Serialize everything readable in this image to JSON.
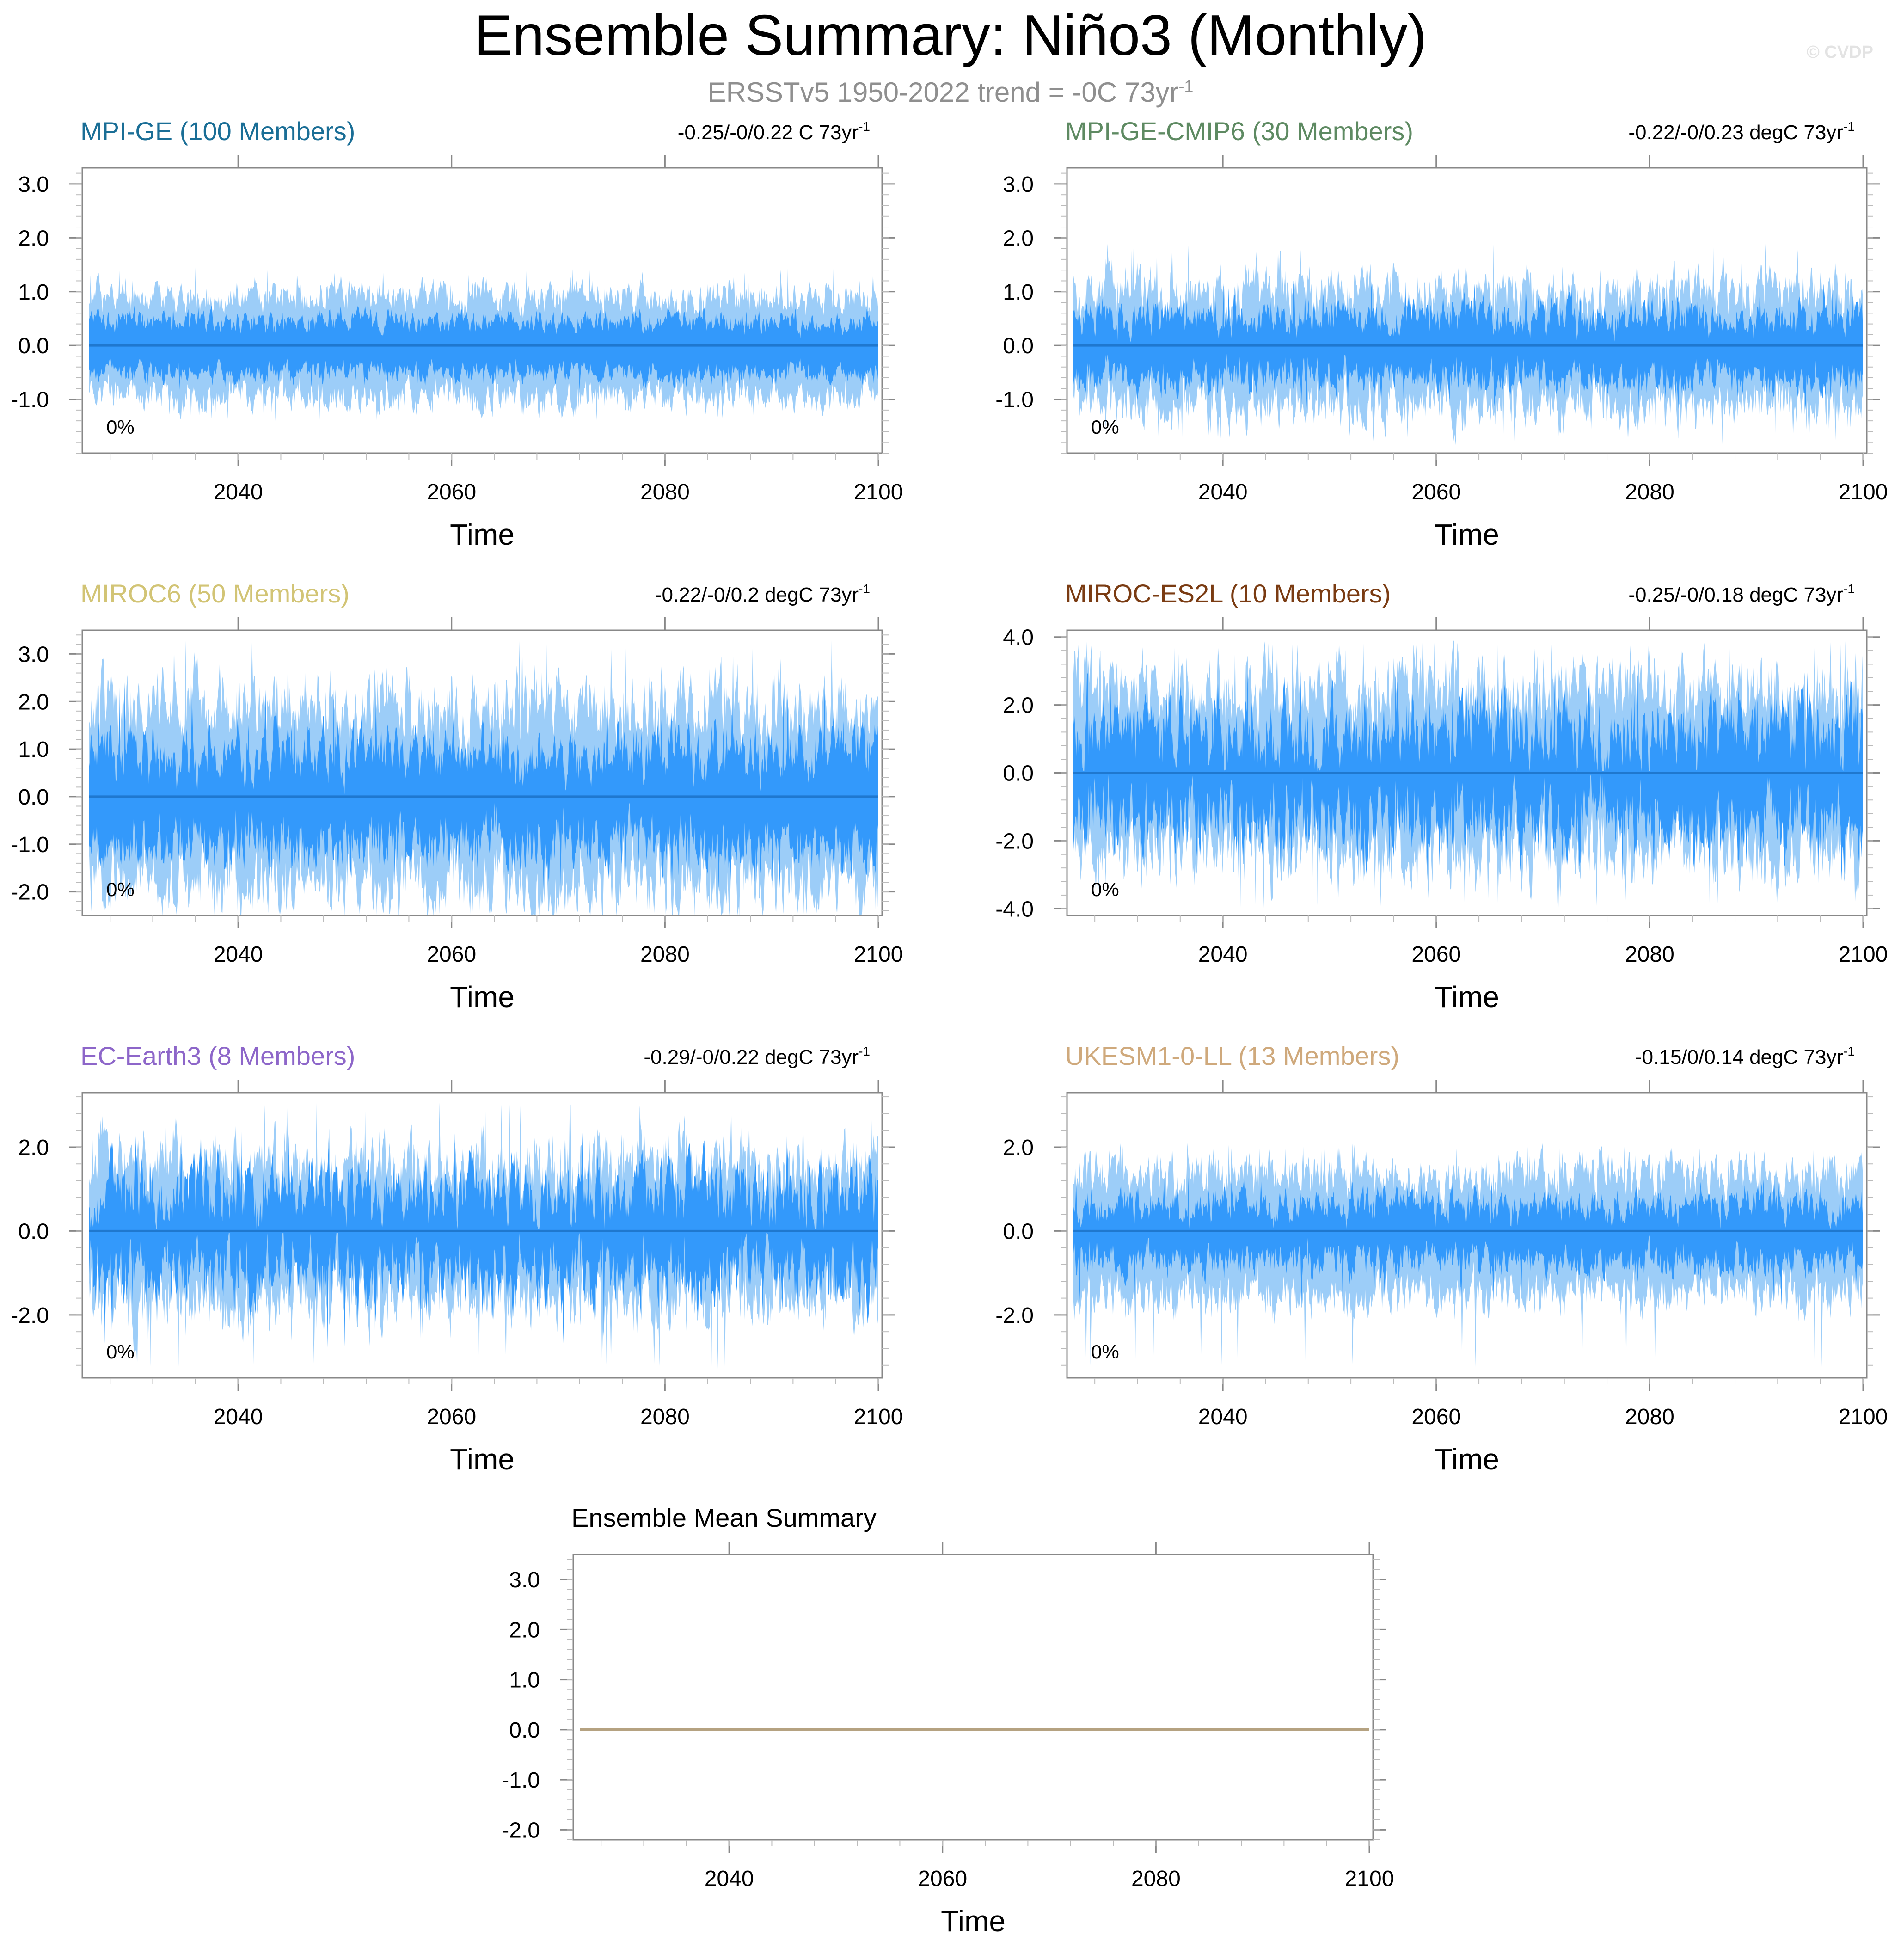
{
  "figure": {
    "title": "Ensemble Summary: Niño3 (Monthly)",
    "subtitle_main": "ERSSTv5 1950-2022 trend = -0C 73yr",
    "subtitle_sup": "-1",
    "copyright": "© CVDP"
  },
  "colors": {
    "outer_band": "#9ccdf8",
    "inner_band": "#3399fb",
    "mean_line": "#1f78cf",
    "ensemble_mean_line": "#b5a281",
    "axis": "#888888"
  },
  "chart_data": [
    {
      "type": "area",
      "title": "MPI-GE (100 Members)",
      "title_color": "#1a6e96",
      "trend_text": "-0.25/-0/0.22 C 73yr",
      "trend_sup": "-1",
      "percent_label": "0%",
      "xlabel": "Time",
      "ylabel": "",
      "x_range": [
        2026,
        2100
      ],
      "x_ticks": [
        2040,
        2060,
        2080,
        2100
      ],
      "ylim": [
        -2.0,
        3.3
      ],
      "y_ticks": [
        -1.0,
        0.0,
        1.0,
        2.0,
        3.0
      ],
      "y_tick_labels": [
        "-1.0",
        "0.0",
        "1.0",
        "2.0",
        "3.0"
      ],
      "series": [
        {
          "name": "",
          "band": "outer",
          "upper_mean": 0.9,
          "lower_mean": -0.95,
          "variability": 0.22,
          "peak_max": 1.45,
          "trough_min": -1.45
        },
        {
          "name": "",
          "band": "inner",
          "upper_mean": 0.45,
          "lower_mean": -0.5,
          "variability": 0.15,
          "peak_max": 0.75,
          "trough_min": -0.85
        },
        {
          "name": "",
          "band": "mean",
          "value": 0.0
        }
      ]
    },
    {
      "type": "area",
      "title": "MPI-GE-CMIP6 (30 Members)",
      "title_color": "#5e8a62",
      "trend_text": "-0.22/-0/0.23 degC 73yr",
      "trend_sup": "-1",
      "percent_label": "0%",
      "xlabel": "Time",
      "ylabel": "",
      "x_range": [
        2026,
        2100
      ],
      "x_ticks": [
        2040,
        2060,
        2080,
        2100
      ],
      "ylim": [
        -2.0,
        3.3
      ],
      "y_ticks": [
        -1.0,
        0.0,
        1.0,
        2.0,
        3.0
      ],
      "y_tick_labels": [
        "-1.0",
        "0.0",
        "1.0",
        "2.0",
        "3.0"
      ],
      "series": [
        {
          "name": "",
          "band": "outer",
          "upper_mean": 1.0,
          "lower_mean": -1.1,
          "variability": 0.35,
          "peak_max": 1.9,
          "trough_min": -1.85
        },
        {
          "name": "",
          "band": "inner",
          "upper_mean": 0.55,
          "lower_mean": -0.6,
          "variability": 0.25,
          "peak_max": 1.2,
          "trough_min": -1.2
        },
        {
          "name": "",
          "band": "mean",
          "value": 0.0
        }
      ]
    },
    {
      "type": "area",
      "title": "MIROC6 (50 Members)",
      "title_color": "#d2c475",
      "trend_text": "-0.22/-0/0.2 degC 73yr",
      "trend_sup": "-1",
      "percent_label": "0%",
      "xlabel": "Time",
      "ylabel": "",
      "x_range": [
        2026,
        2100
      ],
      "x_ticks": [
        2040,
        2060,
        2080,
        2100
      ],
      "ylim": [
        -2.5,
        3.5
      ],
      "y_ticks": [
        -2.0,
        -1.0,
        0.0,
        1.0,
        2.0,
        3.0
      ],
      "y_tick_labels": [
        "-2.0",
        "-1.0",
        "0.0",
        "1.0",
        "2.0",
        "3.0"
      ],
      "series": [
        {
          "name": "",
          "band": "outer",
          "upper_mean": 1.9,
          "lower_mean": -1.8,
          "variability": 0.55,
          "peak_max": 3.4,
          "trough_min": -2.5
        },
        {
          "name": "",
          "band": "inner",
          "upper_mean": 0.9,
          "lower_mean": -1.0,
          "variability": 0.45,
          "peak_max": 2.3,
          "trough_min": -2.0
        },
        {
          "name": "",
          "band": "mean",
          "value": 0.0
        }
      ]
    },
    {
      "type": "area",
      "title": "MIROC-ES2L (10 Members)",
      "title_color": "#7a3b12",
      "trend_text": "-0.25/-0/0.18 degC 73yr",
      "trend_sup": "-1",
      "percent_label": "0%",
      "xlabel": "Time",
      "ylabel": "",
      "x_range": [
        2026,
        2100
      ],
      "x_ticks": [
        2040,
        2060,
        2080,
        2100
      ],
      "ylim": [
        -4.2,
        4.2
      ],
      "y_ticks": [
        -4.0,
        -2.0,
        0.0,
        2.0,
        4.0
      ],
      "y_tick_labels": [
        "-4.0",
        "-2.0",
        "0.0",
        "2.0",
        "4.0"
      ],
      "series": [
        {
          "name": "",
          "band": "outer",
          "upper_mean": 2.4,
          "lower_mean": -2.3,
          "variability": 0.8,
          "peak_max": 3.9,
          "trough_min": -4.0
        },
        {
          "name": "",
          "band": "inner",
          "upper_mean": 1.3,
          "lower_mean": -1.4,
          "variability": 0.85,
          "peak_max": 3.0,
          "trough_min": -3.3
        },
        {
          "name": "",
          "band": "mean",
          "value": 0.0
        }
      ]
    },
    {
      "type": "area",
      "title": "EC-Earth3 (8 Members)",
      "title_color": "#8d66c9",
      "trend_text": "-0.29/-0/0.22 degC 73yr",
      "trend_sup": "-1",
      "percent_label": "0%",
      "xlabel": "Time",
      "ylabel": "",
      "x_range": [
        2026,
        2100
      ],
      "x_ticks": [
        2040,
        2060,
        2080,
        2100
      ],
      "ylim": [
        -3.5,
        3.3
      ],
      "y_ticks": [
        -2.0,
        0.0,
        2.0
      ],
      "y_tick_labels": [
        "-2.0",
        "0.0",
        "2.0"
      ],
      "series": [
        {
          "name": "",
          "band": "outer",
          "upper_mean": 1.6,
          "lower_mean": -1.6,
          "variability": 0.6,
          "peak_max": 3.1,
          "trough_min": -3.3
        },
        {
          "name": "",
          "band": "inner",
          "upper_mean": 0.9,
          "lower_mean": -1.0,
          "variability": 0.6,
          "peak_max": 2.4,
          "trough_min": -2.8
        },
        {
          "name": "",
          "band": "mean",
          "value": 0.0
        }
      ]
    },
    {
      "type": "area",
      "title": "UKESM1-0-LL (13 Members)",
      "title_color": "#cfa97c",
      "trend_text": "-0.15/0/0.14 degC 73yr",
      "trend_sup": "-1",
      "percent_label": "0%",
      "xlabel": "Time",
      "ylabel": "",
      "x_range": [
        2026,
        2100
      ],
      "x_ticks": [
        2040,
        2060,
        2080,
        2100
      ],
      "ylim": [
        -3.5,
        3.3
      ],
      "y_ticks": [
        -2.0,
        0.0,
        2.0
      ],
      "y_tick_labels": [
        "-2.0",
        "0.0",
        "2.0"
      ],
      "series": [
        {
          "name": "",
          "band": "outer",
          "upper_mean": 1.35,
          "lower_mean": -1.5,
          "variability": 0.4,
          "peak_max": 2.1,
          "trough_min": -3.3
        },
        {
          "name": "",
          "band": "inner",
          "upper_mean": 0.6,
          "lower_mean": -0.7,
          "variability": 0.3,
          "peak_max": 1.3,
          "trough_min": -1.8
        },
        {
          "name": "",
          "band": "mean",
          "value": 0.0
        }
      ]
    },
    {
      "type": "line",
      "title": "Ensemble Mean Summary",
      "title_color": "#000000",
      "trend_text": "",
      "trend_sup": "",
      "percent_label": "",
      "xlabel": "Time",
      "ylabel": "",
      "x_range": [
        2026,
        2100
      ],
      "x_ticks": [
        2040,
        2060,
        2080,
        2100
      ],
      "ylim": [
        -2.2,
        3.5
      ],
      "y_ticks": [
        -2.0,
        -1.0,
        0.0,
        1.0,
        2.0,
        3.0
      ],
      "y_tick_labels": [
        "-2.0",
        "-1.0",
        "0.0",
        "1.0",
        "2.0",
        "3.0"
      ],
      "series": [
        {
          "name": "",
          "band": "mean",
          "value": 0.0
        }
      ]
    }
  ]
}
